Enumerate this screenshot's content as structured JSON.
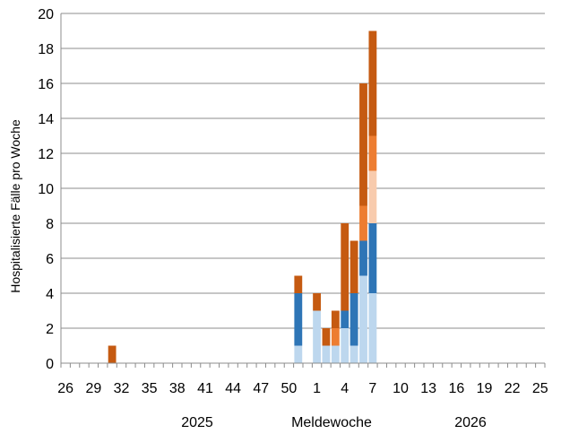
{
  "chart_data": {
    "type": "bar",
    "stacked": true,
    "ylabel": "Hospitalisierte Fälle pro Woche",
    "xlabel": "Meldewoche",
    "year_labels": [
      "2025",
      "2026"
    ],
    "ylim": [
      0,
      20
    ],
    "yticks": [
      "0",
      "2",
      "4",
      "6",
      "8",
      "10",
      "12",
      "14",
      "16",
      "18",
      "20"
    ],
    "grid": true,
    "legend": "none",
    "categories": [
      "26",
      "27",
      "28",
      "29",
      "30",
      "31",
      "32",
      "33",
      "34",
      "35",
      "36",
      "37",
      "38",
      "39",
      "40",
      "41",
      "42",
      "43",
      "44",
      "45",
      "46",
      "47",
      "48",
      "49",
      "50",
      "51",
      "52",
      "1",
      "2",
      "3",
      "4",
      "5",
      "6",
      "7",
      "8",
      "9",
      "10",
      "11",
      "12",
      "13",
      "14",
      "15",
      "16",
      "17",
      "18",
      "19",
      "20",
      "21",
      "22",
      "23",
      "24",
      "25"
    ],
    "xtick_labels": [
      "26",
      "29",
      "32",
      "35",
      "38",
      "41",
      "44",
      "47",
      "50",
      "1",
      "4",
      "7",
      "10",
      "13",
      "16",
      "19",
      "22",
      "25"
    ],
    "series": [
      {
        "color": "#bdd7ee",
        "values": [
          0,
          0,
          0,
          0,
          0,
          0,
          0,
          0,
          0,
          0,
          0,
          0,
          0,
          0,
          0,
          0,
          0,
          0,
          0,
          0,
          0,
          0,
          0,
          0,
          0,
          1,
          0,
          3,
          1,
          1,
          2,
          1,
          5,
          4,
          0,
          0,
          0,
          0,
          0,
          0,
          0,
          0,
          0,
          0,
          0,
          0,
          0,
          0,
          0,
          0,
          0,
          0
        ]
      },
      {
        "color": "#2e75b6",
        "values": [
          0,
          0,
          0,
          0,
          0,
          0,
          0,
          0,
          0,
          0,
          0,
          0,
          0,
          0,
          0,
          0,
          0,
          0,
          0,
          0,
          0,
          0,
          0,
          0,
          0,
          3,
          0,
          0,
          0,
          0,
          1,
          3,
          2,
          4,
          0,
          0,
          0,
          0,
          0,
          0,
          0,
          0,
          0,
          0,
          0,
          0,
          0,
          0,
          0,
          0,
          0,
          0
        ]
      },
      {
        "color": "#f8cbad",
        "values": [
          0,
          0,
          0,
          0,
          0,
          0,
          0,
          0,
          0,
          0,
          0,
          0,
          0,
          0,
          0,
          0,
          0,
          0,
          0,
          0,
          0,
          0,
          0,
          0,
          0,
          0,
          0,
          0,
          0,
          0,
          0,
          0,
          0,
          3,
          0,
          0,
          0,
          0,
          0,
          0,
          0,
          0,
          0,
          0,
          0,
          0,
          0,
          0,
          0,
          0,
          0,
          0
        ]
      },
      {
        "color": "#ed7d31",
        "values": [
          0,
          0,
          0,
          0,
          0,
          0,
          0,
          0,
          0,
          0,
          0,
          0,
          0,
          0,
          0,
          0,
          0,
          0,
          0,
          0,
          0,
          0,
          0,
          0,
          0,
          0,
          0,
          0,
          0,
          1,
          0,
          0,
          2,
          2,
          0,
          0,
          0,
          0,
          0,
          0,
          0,
          0,
          0,
          0,
          0,
          0,
          0,
          0,
          0,
          0,
          0,
          0
        ]
      },
      {
        "color": "#c55a11",
        "values": [
          0,
          0,
          0,
          0,
          0,
          1,
          0,
          0,
          0,
          0,
          0,
          0,
          0,
          0,
          0,
          0,
          0,
          0,
          0,
          0,
          0,
          0,
          0,
          0,
          0,
          1,
          0,
          1,
          1,
          1,
          5,
          3,
          7,
          6,
          0,
          0,
          0,
          0,
          0,
          0,
          0,
          0,
          0,
          0,
          0,
          0,
          0,
          0,
          0,
          0,
          0,
          0
        ]
      }
    ]
  }
}
